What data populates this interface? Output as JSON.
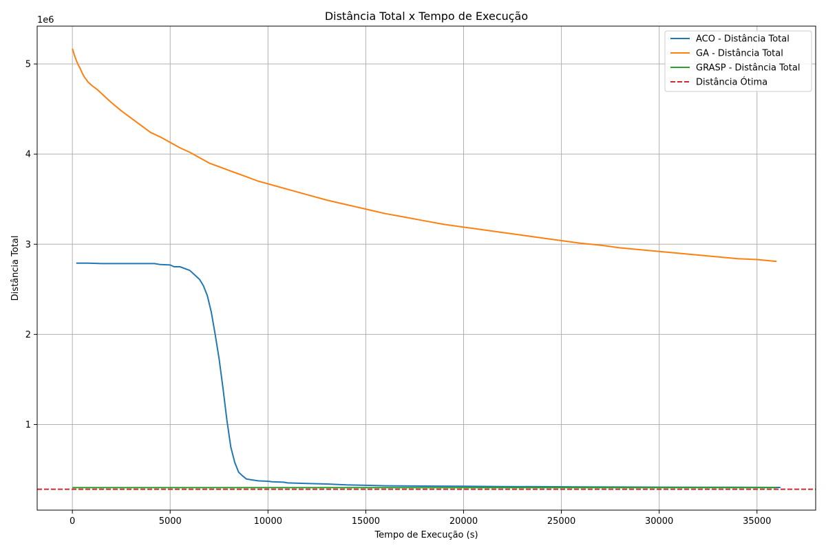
{
  "chart_data": {
    "type": "line",
    "title": "Distância Total x Tempo de Execução",
    "xlabel": "Tempo de Execução (s)",
    "ylabel": "Distância Total",
    "y_offset_label": "1e6",
    "xlim": [
      -1800,
      38000
    ],
    "ylim": [
      50000,
      5420000
    ],
    "x_ticks": [
      0,
      5000,
      10000,
      15000,
      20000,
      25000,
      30000,
      35000
    ],
    "x_tick_labels": [
      "0",
      "5000",
      "10000",
      "15000",
      "20000",
      "25000",
      "30000",
      "35000"
    ],
    "y_ticks": [
      1000000,
      2000000,
      3000000,
      4000000,
      5000000
    ],
    "y_tick_labels": [
      "1",
      "2",
      "3",
      "4",
      "5"
    ],
    "grid": true,
    "legend_position": "top-right",
    "series": [
      {
        "name": "ACO - Distância Total",
        "color": "#1f77b4",
        "style": "solid",
        "x": [
          200,
          800,
          1500,
          2500,
          3500,
          4200,
          4500,
          5000,
          5200,
          5500,
          6000,
          6300,
          6500,
          6700,
          6900,
          7100,
          7300,
          7500,
          7700,
          7900,
          8100,
          8300,
          8500,
          8700,
          8900,
          9200,
          9500,
          10000,
          10200,
          10800,
          11000,
          12000,
          13000,
          13500,
          14000,
          15000,
          16000,
          18000,
          20000,
          22000,
          24000,
          26000,
          28000,
          30000,
          32000,
          34000,
          36000,
          36200
        ],
        "y": [
          2790000,
          2790000,
          2785000,
          2785000,
          2785000,
          2785000,
          2775000,
          2770000,
          2750000,
          2750000,
          2710000,
          2650000,
          2610000,
          2540000,
          2430000,
          2250000,
          2000000,
          1730000,
          1400000,
          1050000,
          750000,
          580000,
          470000,
          430000,
          395000,
          385000,
          375000,
          370000,
          365000,
          360000,
          352000,
          345000,
          340000,
          335000,
          330000,
          325000,
          320000,
          317000,
          315000,
          312000,
          310000,
          308000,
          306000,
          305000,
          304000,
          303000,
          302000,
          302000
        ]
      },
      {
        "name": "GA - Distância Total",
        "color": "#ff7f0e",
        "style": "solid",
        "x": [
          0,
          100,
          200,
          300,
          400,
          500,
          600,
          700,
          800,
          900,
          1000,
          1250,
          1500,
          1750,
          2000,
          2500,
          3000,
          3500,
          4000,
          4500,
          5000,
          5500,
          6000,
          6500,
          7000,
          7500,
          8000,
          8500,
          9000,
          9500,
          10000,
          11000,
          12000,
          13000,
          14000,
          15000,
          16000,
          17000,
          18000,
          19000,
          20000,
          21000,
          22000,
          23000,
          24000,
          25000,
          26000,
          27000,
          28000,
          29000,
          30000,
          31000,
          32000,
          33000,
          34000,
          35000,
          36000
        ],
        "y": [
          5170000,
          5100000,
          5040000,
          4990000,
          4950000,
          4900000,
          4860000,
          4830000,
          4800000,
          4780000,
          4760000,
          4720000,
          4670000,
          4620000,
          4570000,
          4480000,
          4400000,
          4320000,
          4240000,
          4190000,
          4130000,
          4070000,
          4020000,
          3960000,
          3900000,
          3860000,
          3820000,
          3780000,
          3740000,
          3700000,
          3670000,
          3610000,
          3550000,
          3490000,
          3440000,
          3390000,
          3340000,
          3300000,
          3260000,
          3220000,
          3190000,
          3160000,
          3130000,
          3100000,
          3070000,
          3040000,
          3010000,
          2990000,
          2960000,
          2940000,
          2920000,
          2900000,
          2880000,
          2860000,
          2840000,
          2830000,
          2810000
        ]
      },
      {
        "name": "GRASP - Distância Total",
        "color": "#2ca02c",
        "style": "solid",
        "x": [
          0,
          36000
        ],
        "y": [
          300000,
          300000
        ]
      },
      {
        "name": "Distância Ótima",
        "color": "#d62728",
        "style": "dashed",
        "x": [
          -1800,
          38000
        ],
        "y": [
          282000,
          282000
        ]
      }
    ]
  }
}
